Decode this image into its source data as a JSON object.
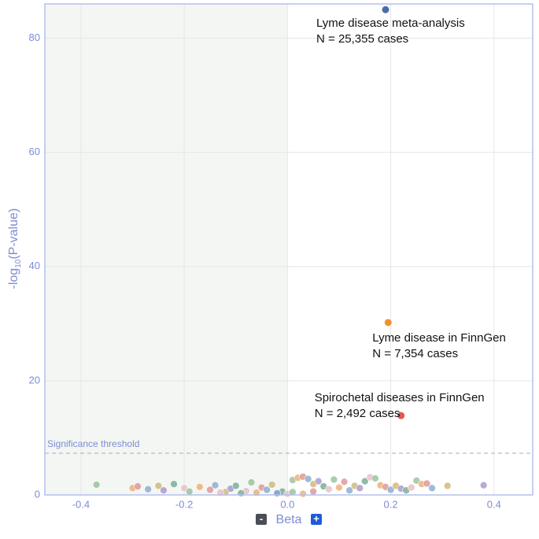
{
  "chart_data": {
    "type": "scatter",
    "xlabel": "Beta",
    "ylabel": {
      "prefix": "-log",
      "sub": "10",
      "suffix": "(P-value)"
    },
    "xlim": [
      -0.47,
      0.475
    ],
    "ylim": [
      0,
      86
    ],
    "xticks": [
      -0.4,
      -0.2,
      {
        "value": 0,
        "label": "0.0"
      },
      0.2,
      0.4
    ],
    "yticks": [
      0,
      20,
      40,
      60,
      80
    ],
    "grid": true,
    "shade_below_x": 0,
    "threshold": {
      "value": 7.3,
      "label": "Significance threshold"
    },
    "palette": [
      "#8fbc8f",
      "#e9a86b",
      "#d98c8c",
      "#7fa6c9",
      "#c9b26b",
      "#a08fc9",
      "#6aa58a",
      "#e6b8c2"
    ],
    "x": [
      -0.37,
      -0.3,
      -0.29,
      -0.27,
      -0.25,
      -0.24,
      -0.22,
      -0.2,
      -0.19,
      -0.17,
      -0.15,
      -0.14,
      -0.12,
      -0.11,
      -0.1,
      -0.08,
      -0.07,
      -0.06,
      -0.05,
      -0.04,
      -0.03,
      -0.02,
      -0.01,
      0.0,
      0.01,
      0.02,
      0.03,
      0.04,
      0.05,
      0.06,
      0.07,
      0.08,
      0.09,
      0.1,
      0.11,
      0.12,
      0.13,
      0.14,
      0.15,
      0.16,
      0.17,
      0.18,
      0.19,
      0.2,
      0.21,
      0.22,
      0.23,
      0.24,
      0.25,
      0.26,
      0.27,
      0.28,
      0.31,
      0.38,
      -0.09,
      -0.13,
      0.01,
      0.03,
      0.05,
      -0.02
    ],
    "values": [
      1.8,
      1.2,
      1.5,
      1.0,
      1.6,
      0.8,
      1.9,
      1.2,
      0.6,
      1.4,
      0.9,
      1.7,
      0.5,
      1.1,
      1.6,
      0.7,
      2.2,
      0.4,
      1.3,
      0.9,
      1.8,
      0.3,
      0.6,
      0.2,
      2.6,
      3.0,
      3.2,
      2.8,
      1.9,
      2.4,
      1.5,
      1.0,
      2.7,
      1.3,
      2.3,
      0.8,
      1.6,
      1.2,
      2.4,
      3.1,
      2.9,
      1.7,
      1.4,
      0.9,
      1.6,
      1.1,
      0.8,
      1.3,
      2.5,
      1.9,
      2.0,
      1.2,
      1.6,
      1.7,
      0.3,
      0.4,
      0.5,
      0.2,
      0.6,
      0.3
    ],
    "labeled_points": [
      {
        "x": 0.19,
        "y": 85,
        "color": "#4a6fa5",
        "label": [
          "Lyme disease meta-analysis",
          "N = 25,355 cases"
        ]
      },
      {
        "x": 0.195,
        "y": 30.2,
        "color": "#f0922e",
        "label": [
          "Lyme disease in FinnGen",
          "N = 7,354 cases"
        ]
      },
      {
        "x": 0.22,
        "y": 13.9,
        "color": "#e05a52",
        "label": [
          "Spirochetal diseases in FinnGen",
          "N = 2,492 cases"
        ]
      }
    ]
  },
  "controls": [
    "-",
    "+"
  ]
}
